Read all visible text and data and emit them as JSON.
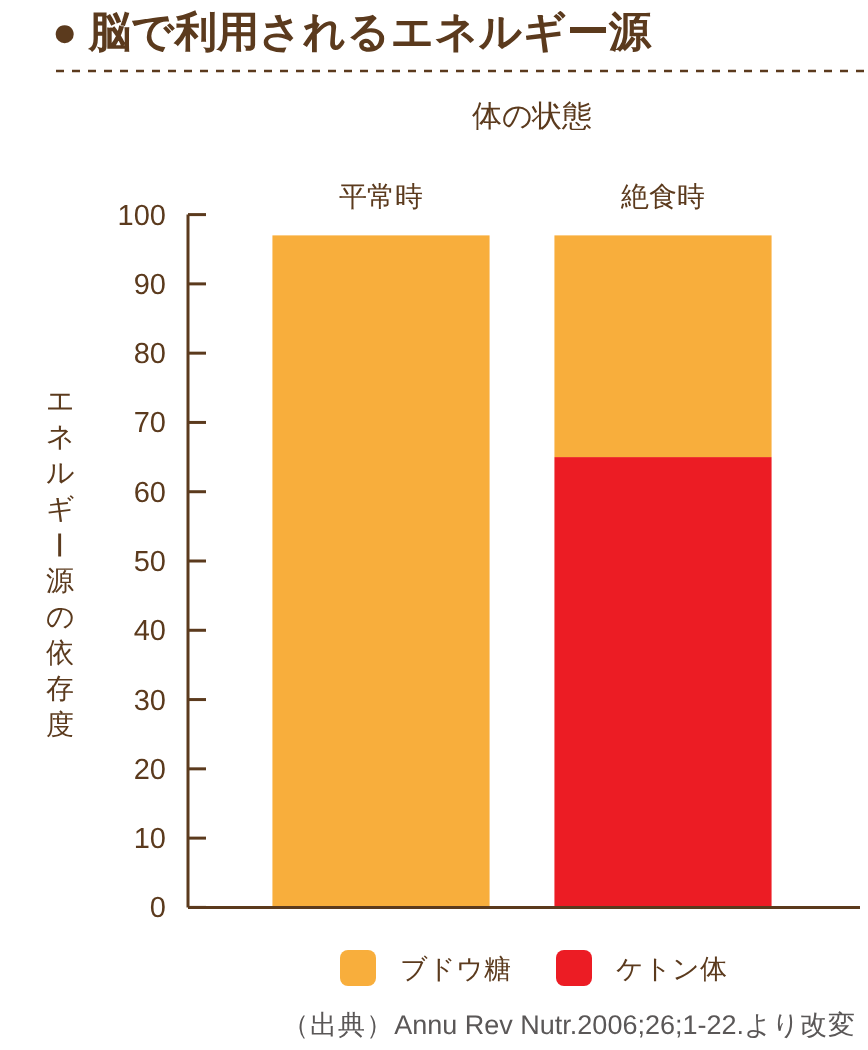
{
  "chart_data": {
    "type": "bar",
    "stacked": true,
    "title": "● 脳で利用されるエネルギー源",
    "xlabel": "体の状態",
    "ylabel": "エネルギー源の依存度",
    "categories": [
      "平常時",
      "絶食時"
    ],
    "series": [
      {
        "name": "ケトン体",
        "color": "#ec1c24",
        "values": [
          null,
          65
        ]
      },
      {
        "name": "ブドウ糖",
        "color": "#f8ae3c",
        "values": [
          97,
          32
        ]
      }
    ],
    "ylim": [
      0,
      100
    ],
    "yticks": [
      0,
      10,
      20,
      30,
      40,
      50,
      60,
      70,
      80,
      90,
      100
    ],
    "legend": "bottom",
    "annotations": [
      "（出典）Annu Rev Nutr.2006;26;1-22.より改変"
    ]
  }
}
